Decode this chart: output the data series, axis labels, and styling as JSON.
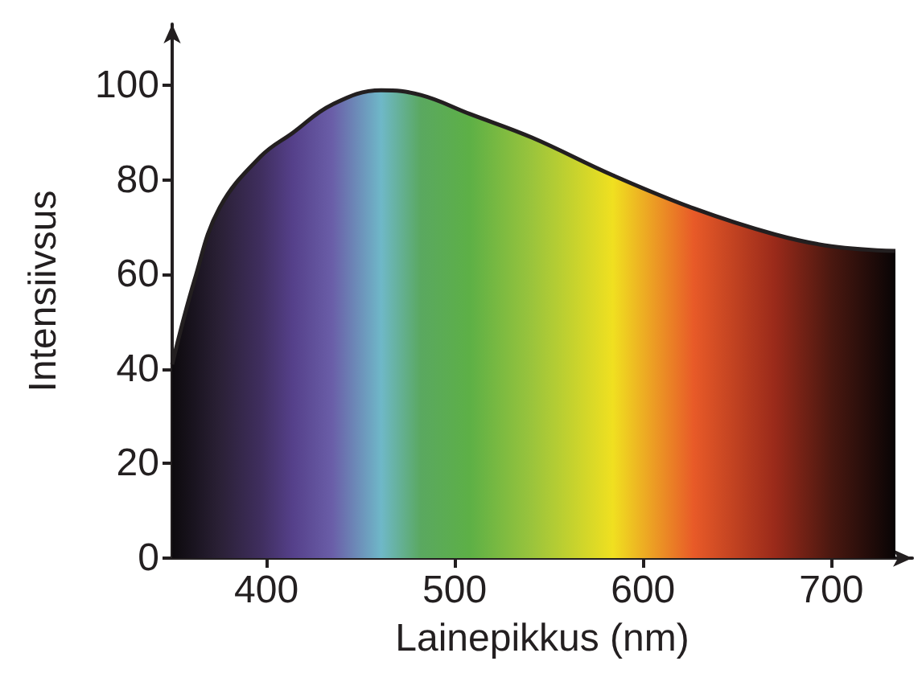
{
  "chart_data": {
    "type": "area",
    "xlabel": "Lainepikkus (nm)",
    "ylabel": "Intensiivsus",
    "xlim": [
      350,
      743
    ],
    "xticks": [
      400,
      500,
      600,
      700
    ],
    "ylim": [
      0,
      113
    ],
    "yticks": [
      0,
      20,
      40,
      60,
      80,
      100
    ],
    "grid": false,
    "x": [
      350,
      362,
      375,
      397,
      414,
      435,
      461,
      482,
      508,
      541,
      584,
      627,
      670,
      700,
      734
    ],
    "series": [
      {
        "color": "#231f20",
        "values": [
          41,
          59,
          74,
          85,
          90,
          96,
          99,
          98,
          94,
          89,
          81,
          74,
          68.5,
          66,
          65
        ],
        "colors": [
          "#0d0a0d",
          "#1a1420",
          "#2a2035",
          "#3f2e5e",
          "#55408a",
          "#6a5ea8",
          "#6fb8c8",
          "#5aa860",
          "#5db046",
          "#9ac43c",
          "#f0e020",
          "#e85a28",
          "#9a2a1a",
          "#4a1810",
          "#080405"
        ]
      }
    ]
  }
}
